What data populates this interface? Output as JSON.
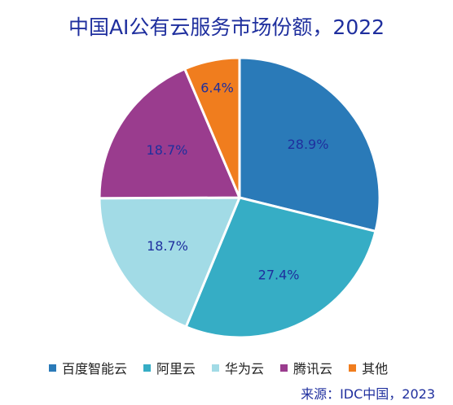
{
  "chart_data": {
    "type": "pie",
    "title": "中国AI公有云服务市场份额，2022",
    "categories": [
      "百度智能云",
      "阿里云",
      "华为云",
      "腾讯云",
      "其他"
    ],
    "values": [
      28.9,
      27.4,
      18.7,
      18.7,
      6.4
    ],
    "labels": [
      "28.9%",
      "27.4%",
      "18.7%",
      "18.7%",
      "6.4%"
    ],
    "colors": [
      "#2a7ab8",
      "#36adc5",
      "#a2dbe6",
      "#9a3c8e",
      "#f07d1e"
    ],
    "legend_position": "bottom",
    "source": "来源：IDC中国，2023"
  }
}
